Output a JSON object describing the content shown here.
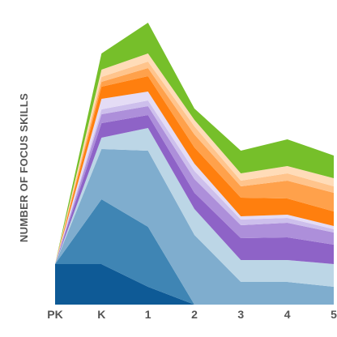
{
  "chart_data": {
    "type": "area",
    "stacked": true,
    "title": "",
    "xlabel": "",
    "ylabel": "NUMBER OF FOCUS SKILLS",
    "categories": [
      "PK",
      "K",
      "1",
      "2",
      "3",
      "4",
      "5"
    ],
    "ylim": [
      0,
      36
    ],
    "grid": false,
    "legend": "none",
    "series": [
      {
        "color": "#0e5a96",
        "values": [
          5.0,
          5.0,
          2.2,
          0.0,
          0.0,
          0.0,
          0.0
        ]
      },
      {
        "color": "#3f85b4",
        "values": [
          0.0,
          8.0,
          7.4,
          0.0,
          0.0,
          0.0,
          0.0
        ]
      },
      {
        "color": "#7fadce",
        "values": [
          0.0,
          6.2,
          9.4,
          8.6,
          2.8,
          2.8,
          2.2
        ]
      },
      {
        "color": "#bcd6e6",
        "values": [
          0.0,
          1.4,
          2.8,
          3.2,
          2.7,
          2.7,
          2.8
        ]
      },
      {
        "color": "#8e63c7",
        "values": [
          0.0,
          1.8,
          1.6,
          2.0,
          2.7,
          2.8,
          2.4
        ]
      },
      {
        "color": "#ad8fda",
        "values": [
          0.0,
          1.1,
          1.1,
          1.7,
          1.6,
          1.8,
          1.5
        ]
      },
      {
        "color": "#cdbfec",
        "values": [
          0.0,
          0.6,
          0.7,
          1.0,
          0.7,
          0.6,
          0.4
        ]
      },
      {
        "color": "#e4dcf5",
        "values": [
          0.0,
          1.3,
          1.1,
          0.9,
          0.4,
          0.4,
          0.4
        ]
      },
      {
        "color": "#ff7f0e",
        "values": [
          0.0,
          1.5,
          1.9,
          2.0,
          2.3,
          2.0,
          1.8
        ]
      },
      {
        "color": "#ffa14b",
        "values": [
          0.0,
          0.6,
          1.0,
          1.6,
          1.4,
          2.2,
          2.3
        ]
      },
      {
        "color": "#ffc48c",
        "values": [
          0.0,
          0.6,
          0.8,
          1.0,
          0.7,
          0.9,
          0.8
        ]
      },
      {
        "color": "#ffdcb8",
        "values": [
          0.0,
          0.9,
          1.0,
          0.8,
          0.9,
          0.9,
          1.0
        ]
      },
      {
        "color": "#76bf2a",
        "values": [
          0.0,
          2.0,
          3.8,
          1.4,
          2.8,
          3.3,
          2.8
        ]
      }
    ]
  }
}
